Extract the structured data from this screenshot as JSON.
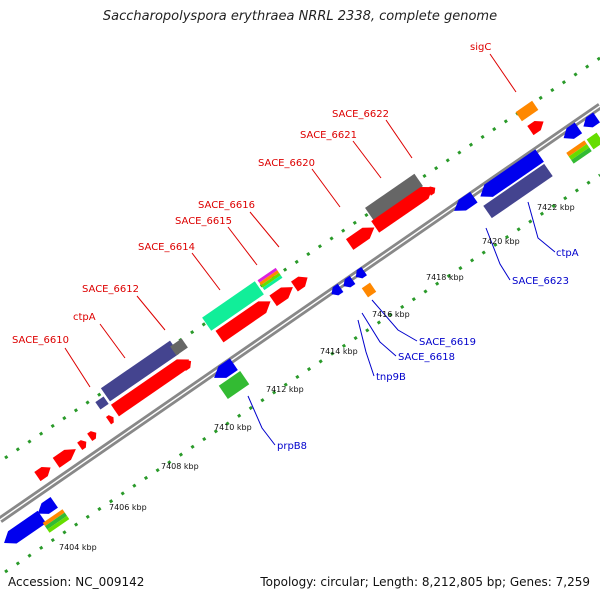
{
  "title": "Saccharopolyspora erythraea NRRL 2338, complete genome",
  "footer": {
    "accession": "Accession: NC_009142",
    "stats": "Topology: circular; Length: 8,212,805 bp; Genes: 7,259"
  },
  "colors": {
    "backbone": "#888888",
    "tick_ring": "#2a9a2a",
    "forward_label": "#dd0000",
    "reverse_label": "#0000cc",
    "red": "#ff0000",
    "blue": "#0000ee",
    "navy": "#44448f",
    "green": "#33bb33",
    "orange": "#ff8800",
    "gray": "#666666",
    "cyan": "#11ee99",
    "magenta": "#dd22dd",
    "lime": "#66dd00"
  },
  "scale_labels": [
    "7404 kbp",
    "7406 kbp",
    "7408 kbp",
    "7410 kbp",
    "7412 kbp",
    "7414 kbp",
    "7416 kbp",
    "7418 kbp",
    "7420 kbp",
    "7422 kbp"
  ],
  "forward_genes": [
    "SACE_6610",
    "ctpA",
    "SACE_6612",
    "SACE_6614",
    "SACE_6615",
    "SACE_6616",
    "SACE_6620",
    "SACE_6621",
    "SACE_6622",
    "sigC"
  ],
  "reverse_genes": [
    "prpB8",
    "tnp9B",
    "SACE_6618",
    "SACE_6619",
    "SACE_6623",
    "ctpA"
  ]
}
